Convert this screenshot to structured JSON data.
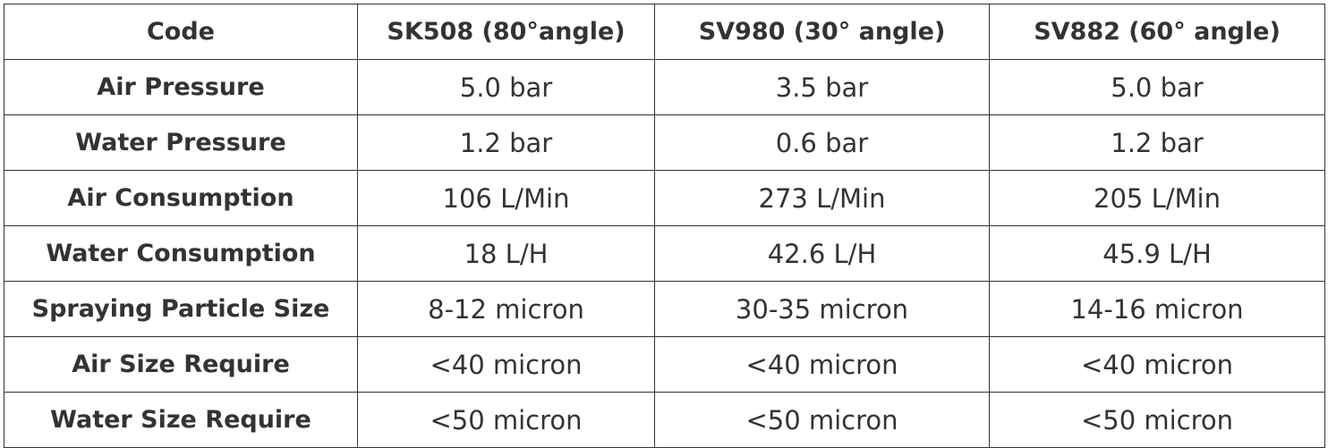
{
  "table": {
    "headers": [
      "Code",
      "SK508 (80°angle)",
      "SV980 (30° angle)",
      "SV882 (60° angle)"
    ],
    "rows": [
      [
        "Air Pressure",
        "5.0 bar",
        "3.5 bar",
        "5.0 bar"
      ],
      [
        "Water Pressure",
        "1.2 bar",
        "0.6 bar",
        "1.2 bar"
      ],
      [
        "Air Consumption",
        "106 L/Min",
        "273 L/Min",
        "205 L/Min"
      ],
      [
        "Water Consumption",
        "18 L/H",
        "42.6 L/H",
        "45.9 L/H"
      ],
      [
        "Spraying Particle Size",
        "8-12 micron",
        "30-35 micron",
        "14-16 micron"
      ],
      [
        "Air Size Require",
        "<40 micron",
        "<40 micron",
        "<40 micron"
      ],
      [
        "Water Size Require",
        "<50 micron",
        "<50 micron",
        "<50 micron"
      ]
    ]
  }
}
